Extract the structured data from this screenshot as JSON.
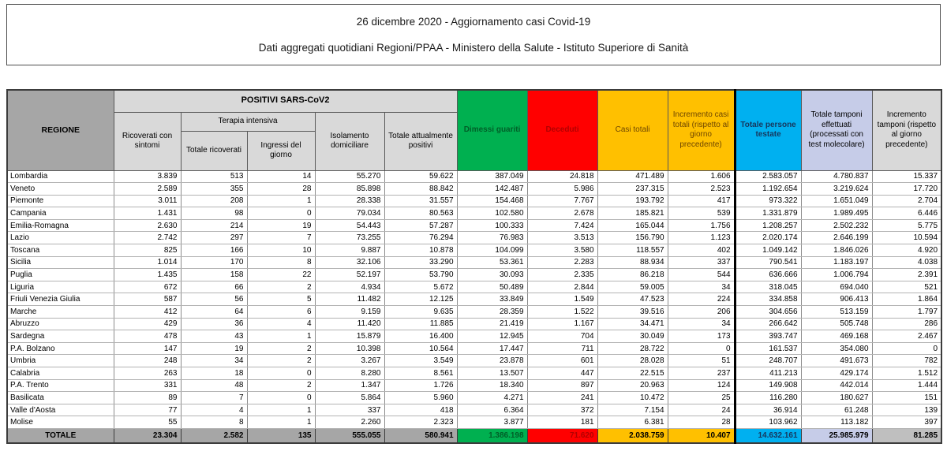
{
  "title": {
    "line1": "26 dicembre 2020 - Aggiornamento casi Covid-19",
    "line2": "Dati aggregati quotidiani Regioni/PPAA - Ministero della Salute - Istituto Superiore di Sanità"
  },
  "colors": {
    "green": "#00B050",
    "green_text": "#005f28",
    "red": "#FF0000",
    "red_text": "#b30000",
    "yellow": "#FFC000",
    "yellow_text": "#6e4600",
    "cyan": "#00B0F0",
    "cyan_text": "#17375d",
    "periwinkle": "#C6CCE8",
    "header_gray": "#A6A6A6",
    "subheader_gray": "#D9D9D9",
    "totals_gray2": "#BFBFBF"
  },
  "table": {
    "group_headers": {
      "positivi": "POSITIVI SARS-CoV2",
      "terapia_intensiva": "Terapia intensiva"
    },
    "columns": [
      {
        "key": "regione",
        "label": "REGIONE"
      },
      {
        "key": "ricoverati_con_sintomi",
        "label": "Ricoverati con sintomi"
      },
      {
        "key": "terapia_totale_ricoverati",
        "label": "Totale ricoverati"
      },
      {
        "key": "terapia_ingressi_giorno",
        "label": "Ingressi del giorno"
      },
      {
        "key": "isolamento_domiciliare",
        "label": "Isolamento domiciliare"
      },
      {
        "key": "totale_attualmente_positivi",
        "label": "Totale attualmente positivi"
      },
      {
        "key": "dimessi_guariti",
        "label": "Dimessi guariti"
      },
      {
        "key": "deceduti",
        "label": "Deceduti"
      },
      {
        "key": "casi_totali",
        "label": "Casi totali"
      },
      {
        "key": "incremento_casi_totali",
        "label": "Incremento casi totali (rispetto al giorno precedente)"
      },
      {
        "key": "totale_persone_testate",
        "label": "Totale persone testate"
      },
      {
        "key": "totale_tamponi",
        "label": "Totale tamponi effettuati (processati con test molecolare)"
      },
      {
        "key": "incremento_tamponi",
        "label": "Incremento tamponi (rispetto al giorno precedente)"
      }
    ],
    "rows": [
      [
        "Lombardia",
        "3.839",
        "513",
        "14",
        "55.270",
        "59.622",
        "387.049",
        "24.818",
        "471.489",
        "1.606",
        "2.583.057",
        "4.780.837",
        "15.337"
      ],
      [
        "Veneto",
        "2.589",
        "355",
        "28",
        "85.898",
        "88.842",
        "142.487",
        "5.986",
        "237.315",
        "2.523",
        "1.192.654",
        "3.219.624",
        "17.720"
      ],
      [
        "Piemonte",
        "3.011",
        "208",
        "1",
        "28.338",
        "31.557",
        "154.468",
        "7.767",
        "193.792",
        "417",
        "973.322",
        "1.651.049",
        "2.704"
      ],
      [
        "Campania",
        "1.431",
        "98",
        "0",
        "79.034",
        "80.563",
        "102.580",
        "2.678",
        "185.821",
        "539",
        "1.331.879",
        "1.989.495",
        "6.446"
      ],
      [
        "Emilia-Romagna",
        "2.630",
        "214",
        "19",
        "54.443",
        "57.287",
        "100.333",
        "7.424",
        "165.044",
        "1.756",
        "1.208.257",
        "2.502.232",
        "5.775"
      ],
      [
        "Lazio",
        "2.742",
        "297",
        "7",
        "73.255",
        "76.294",
        "76.983",
        "3.513",
        "156.790",
        "1.123",
        "2.020.174",
        "2.646.199",
        "10.594"
      ],
      [
        "Toscana",
        "825",
        "166",
        "10",
        "9.887",
        "10.878",
        "104.099",
        "3.580",
        "118.557",
        "402",
        "1.049.142",
        "1.846.026",
        "4.920"
      ],
      [
        "Sicilia",
        "1.014",
        "170",
        "8",
        "32.106",
        "33.290",
        "53.361",
        "2.283",
        "88.934",
        "337",
        "790.541",
        "1.183.197",
        "4.038"
      ],
      [
        "Puglia",
        "1.435",
        "158",
        "22",
        "52.197",
        "53.790",
        "30.093",
        "2.335",
        "86.218",
        "544",
        "636.666",
        "1.006.794",
        "2.391"
      ],
      [
        "Liguria",
        "672",
        "66",
        "2",
        "4.934",
        "5.672",
        "50.489",
        "2.844",
        "59.005",
        "34",
        "318.045",
        "694.040",
        "521"
      ],
      [
        "Friuli Venezia Giulia",
        "587",
        "56",
        "5",
        "11.482",
        "12.125",
        "33.849",
        "1.549",
        "47.523",
        "224",
        "334.858",
        "906.413",
        "1.864"
      ],
      [
        "Marche",
        "412",
        "64",
        "6",
        "9.159",
        "9.635",
        "28.359",
        "1.522",
        "39.516",
        "206",
        "304.656",
        "513.159",
        "1.797"
      ],
      [
        "Abruzzo",
        "429",
        "36",
        "4",
        "11.420",
        "11.885",
        "21.419",
        "1.167",
        "34.471",
        "34",
        "266.642",
        "505.748",
        "286"
      ],
      [
        "Sardegna",
        "478",
        "43",
        "1",
        "15.879",
        "16.400",
        "12.945",
        "704",
        "30.049",
        "173",
        "393.747",
        "469.168",
        "2.467"
      ],
      [
        "P.A. Bolzano",
        "147",
        "19",
        "2",
        "10.398",
        "10.564",
        "17.447",
        "711",
        "28.722",
        "0",
        "161.537",
        "354.080",
        "0"
      ],
      [
        "Umbria",
        "248",
        "34",
        "2",
        "3.267",
        "3.549",
        "23.878",
        "601",
        "28.028",
        "51",
        "248.707",
        "491.673",
        "782"
      ],
      [
        "Calabria",
        "263",
        "18",
        "0",
        "8.280",
        "8.561",
        "13.507",
        "447",
        "22.515",
        "237",
        "411.213",
        "429.174",
        "1.512"
      ],
      [
        "P.A. Trento",
        "331",
        "48",
        "2",
        "1.347",
        "1.726",
        "18.340",
        "897",
        "20.963",
        "124",
        "149.908",
        "442.014",
        "1.444"
      ],
      [
        "Basilicata",
        "89",
        "7",
        "0",
        "5.864",
        "5.960",
        "4.271",
        "241",
        "10.472",
        "25",
        "116.280",
        "180.627",
        "151"
      ],
      [
        "Valle d'Aosta",
        "77",
        "4",
        "1",
        "337",
        "418",
        "6.364",
        "372",
        "7.154",
        "24",
        "36.914",
        "61.248",
        "139"
      ],
      [
        "Molise",
        "55",
        "8",
        "1",
        "2.260",
        "2.323",
        "3.877",
        "181",
        "6.381",
        "28",
        "103.962",
        "113.182",
        "397"
      ]
    ],
    "totals": {
      "label": "TOTALE",
      "values": [
        "23.304",
        "2.582",
        "135",
        "555.055",
        "580.941",
        "1.386.198",
        "71.620",
        "2.038.759",
        "10.407",
        "14.632.161",
        "25.985.979",
        "81.285"
      ]
    }
  }
}
